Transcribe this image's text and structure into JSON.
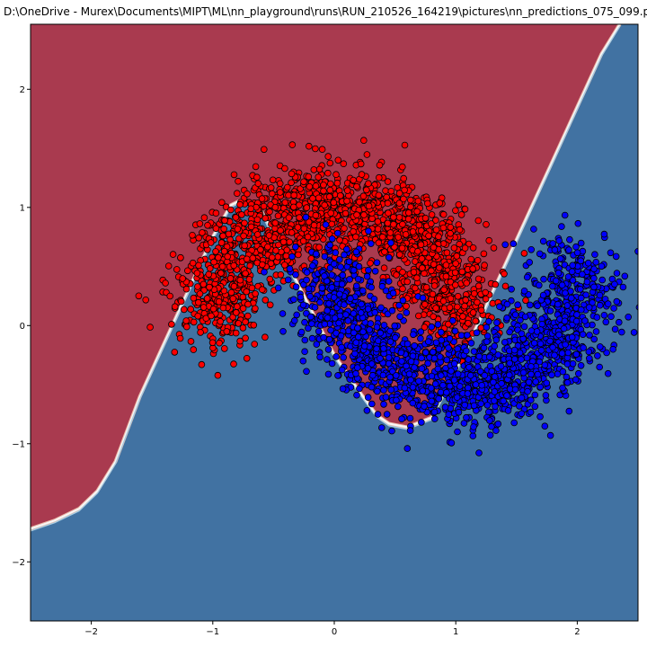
{
  "window": {
    "title": "D:\\OneDrive - Murex\\Documents\\MIPT\\ML\\nn_playground\\runs\\RUN_210526_164219\\pictures\\nn_predictions_075_099.p"
  },
  "chart_data": {
    "type": "scatter",
    "title": "",
    "xlabel": "",
    "ylabel": "",
    "xlim": [
      -2.5,
      2.5
    ],
    "ylim": [
      -2.5,
      2.55
    ],
    "grid": false,
    "x_ticks": [
      -2,
      -1,
      0,
      1,
      2
    ],
    "y_ticks": [
      -2,
      -1,
      0,
      1,
      2
    ],
    "x_tick_labels": [
      "−2",
      "−1",
      "0",
      "1",
      "2"
    ],
    "y_tick_labels": [
      "−2",
      "−1",
      "0",
      "1",
      "2"
    ],
    "background": {
      "description_colors": {
        "class_red_region": "#a93a4f",
        "class_blue_region": "#4172a2"
      },
      "decision_boundary": [
        [
          -2.5,
          -1.72
        ],
        [
          -2.3,
          -1.65
        ],
        [
          -2.1,
          -1.55
        ],
        [
          -1.95,
          -1.4
        ],
        [
          -1.8,
          -1.15
        ],
        [
          -1.6,
          -0.6
        ],
        [
          -1.4,
          -0.15
        ],
        [
          -1.2,
          0.3
        ],
        [
          -1.0,
          0.75
        ],
        [
          -0.85,
          1.02
        ],
        [
          -0.75,
          1.07
        ],
        [
          -0.6,
          0.97
        ],
        [
          -0.4,
          0.55
        ],
        [
          -0.2,
          0.15
        ],
        [
          0.0,
          -0.25
        ],
        [
          0.2,
          -0.55
        ],
        [
          0.35,
          -0.76
        ],
        [
          0.45,
          -0.83
        ],
        [
          0.6,
          -0.86
        ],
        [
          0.8,
          -0.78
        ],
        [
          1.0,
          -0.38
        ],
        [
          1.2,
          0.05
        ],
        [
          1.4,
          0.5
        ],
        [
          1.6,
          0.95
        ],
        [
          1.8,
          1.4
        ],
        [
          2.0,
          1.85
        ],
        [
          2.2,
          2.3
        ],
        [
          2.35,
          2.55
        ]
      ]
    },
    "series": [
      {
        "class": "red",
        "color": "#ff0000",
        "edge_color": "#000000",
        "shape": "upper moon",
        "center": [
          0,
          0
        ],
        "radius": 1,
        "angle_range_deg": [
          0,
          180
        ],
        "noise_std": 0.2,
        "count": 1800
      },
      {
        "class": "blue",
        "color": "#0000ff",
        "edge_color": "#000000",
        "shape": "lower moon",
        "center": [
          1,
          0.5
        ],
        "radius": 1,
        "angle_range_deg": [
          180,
          360
        ],
        "noise_std": 0.2,
        "count": 1800
      }
    ]
  }
}
